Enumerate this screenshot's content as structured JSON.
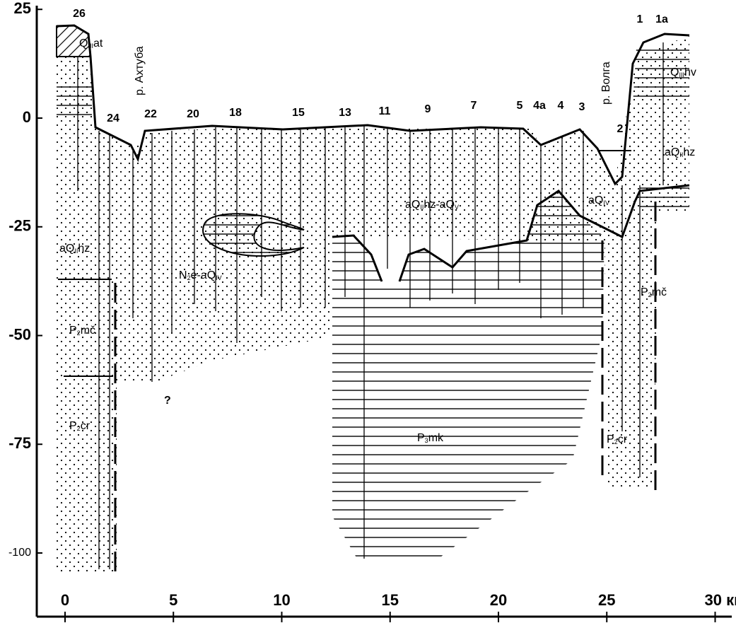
{
  "axes": {
    "yticks": [
      {
        "value": 25,
        "label": "25"
      },
      {
        "value": 0,
        "label": "0"
      },
      {
        "value": -25,
        "label": "-25"
      },
      {
        "value": -50,
        "label": "-50"
      },
      {
        "value": -75,
        "label": "-75"
      },
      {
        "value": -100,
        "label": "-100"
      }
    ],
    "xticks": [
      {
        "value": 0,
        "label": "0"
      },
      {
        "value": 5,
        "label": "5"
      },
      {
        "value": 10,
        "label": "10"
      },
      {
        "value": 15,
        "label": "15"
      },
      {
        "value": 20,
        "label": "20"
      },
      {
        "value": 25,
        "label": "25"
      },
      {
        "value": 30,
        "label": "30 км"
      }
    ]
  },
  "boreholes": [
    "26",
    "24",
    "22",
    "20",
    "18",
    "15",
    "13",
    "11",
    "9",
    "7",
    "5",
    "4а",
    "4",
    "3",
    "2",
    "1",
    "1а"
  ],
  "rivers": [
    "р. Ахтуба",
    "р. Волга"
  ],
  "formations": [
    {
      "parts": [
        "Q",
        "III",
        "at"
      ]
    },
    {
      "parts": [
        "Q",
        "III",
        "hv"
      ]
    },
    {
      "parts": [
        "aQ",
        "II",
        "hz"
      ]
    },
    {
      "parts": [
        "aQ",
        "II",
        "hz"
      ]
    },
    {
      "parts": [
        "aQ",
        "II",
        "hz-aQ",
        "V"
      ]
    },
    {
      "parts": [
        "aQ",
        "IV"
      ]
    },
    {
      "parts": [
        "N",
        "2",
        "e-aQ",
        "IV"
      ]
    },
    {
      "parts": [
        "P",
        "2",
        "mč"
      ]
    },
    {
      "parts": [
        "P",
        "2",
        "mč"
      ]
    },
    {
      "parts": [
        "P",
        "2",
        "cr"
      ]
    },
    {
      "parts": [
        "P",
        "2",
        "cr"
      ]
    },
    {
      "parts": [
        "P",
        "3",
        "mk"
      ]
    },
    {
      "parts": [
        "?"
      ]
    }
  ]
}
